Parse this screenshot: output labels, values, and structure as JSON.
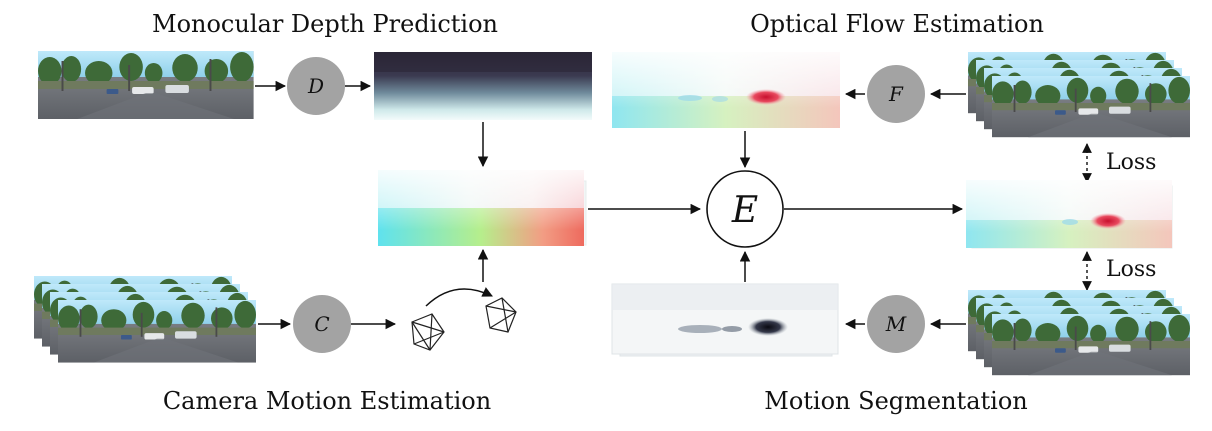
{
  "titles": {
    "depth": "Monocular Depth Prediction",
    "flow": "Optical Flow Estimation",
    "camera": "Camera Motion Estimation",
    "segmentation": "Motion Segmentation"
  },
  "nodes": {
    "depth_net": "D",
    "flow_net": "F",
    "camera_net": "C",
    "seg_net": "M",
    "combiner": "E"
  },
  "loss_labels": {
    "top": "Loss",
    "bottom": "Loss"
  },
  "colors": {
    "node_fill": "#a3a3a3",
    "combiner_fill": "#ffffff",
    "arrow": "#111111",
    "sky": "#9fd8ef",
    "trees": "#3f6b3a",
    "road": "#7b7e85"
  }
}
